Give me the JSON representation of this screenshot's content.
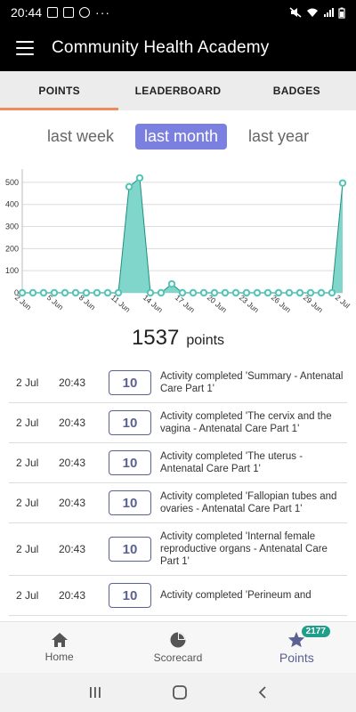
{
  "status_bar": {
    "time": "20:44",
    "more": "···"
  },
  "app_bar": {
    "title": "Community Health Academy"
  },
  "tabs": [
    {
      "label": "POINTS",
      "active": true
    },
    {
      "label": "LEADERBOARD",
      "active": false
    },
    {
      "label": "BADGES",
      "active": false
    }
  ],
  "periods": [
    {
      "label": "last week",
      "active": false
    },
    {
      "label": "last month",
      "active": true
    },
    {
      "label": "last year",
      "active": false
    }
  ],
  "chart_data": {
    "type": "area",
    "title": "",
    "xlabel": "",
    "ylabel": "",
    "x": [
      "2 Jun",
      "3 Jun",
      "4 Jun",
      "5 Jun",
      "6 Jun",
      "7 Jun",
      "8 Jun",
      "9 Jun",
      "10 Jun",
      "11 Jun",
      "12 Jun",
      "13 Jun",
      "14 Jun",
      "15 Jun",
      "16 Jun",
      "17 Jun",
      "18 Jun",
      "19 Jun",
      "20 Jun",
      "21 Jun",
      "22 Jun",
      "23 Jun",
      "24 Jun",
      "25 Jun",
      "26 Jun",
      "27 Jun",
      "28 Jun",
      "29 Jun",
      "30 Jun",
      "1 Jul",
      "2 Jul"
    ],
    "values": [
      0,
      0,
      0,
      0,
      0,
      0,
      0,
      0,
      0,
      0,
      480,
      520,
      0,
      0,
      40,
      0,
      0,
      0,
      0,
      0,
      0,
      0,
      0,
      0,
      0,
      0,
      0,
      0,
      0,
      0,
      497
    ],
    "x_tick_labels": [
      "2 Jun",
      "5 Jun",
      "8 Jun",
      "11 Jun",
      "14 Jun",
      "17 Jun",
      "20 Jun",
      "23 Jun",
      "26 Jun",
      "29 Jun",
      "2 Jul"
    ],
    "y_ticks": [
      0,
      100,
      200,
      300,
      400,
      500
    ],
    "ylim": [
      0,
      560
    ],
    "grid": true,
    "colors": {
      "fill": "#80d6cb",
      "line": "#1e8f80",
      "point": "#4fc6b6"
    }
  },
  "total": {
    "value": "1537",
    "label": "points"
  },
  "activities": [
    {
      "date": "2 Jul",
      "time": "20:43",
      "points": "10",
      "desc": "Activity completed 'Summary - Antenatal Care Part 1'"
    },
    {
      "date": "2 Jul",
      "time": "20:43",
      "points": "10",
      "desc": "Activity completed 'The cervix and the vagina - Antenatal Care Part 1'"
    },
    {
      "date": "2 Jul",
      "time": "20:43",
      "points": "10",
      "desc": "Activity completed 'The uterus - Antenatal Care Part 1'"
    },
    {
      "date": "2 Jul",
      "time": "20:43",
      "points": "10",
      "desc": "Activity completed 'Fallopian tubes and ovaries - Antenatal Care Part 1'"
    },
    {
      "date": "2 Jul",
      "time": "20:43",
      "points": "10",
      "desc": "Activity completed 'Internal female reproductive organs - Antenatal Care Part 1'"
    },
    {
      "date": "2 Jul",
      "time": "20:43",
      "points": "10",
      "desc": "Activity completed 'Perineum and"
    }
  ],
  "bottom_nav": [
    {
      "label": "Home",
      "icon": "home-icon",
      "active": false
    },
    {
      "label": "Scorecard",
      "icon": "pie-chart-icon",
      "active": false
    },
    {
      "label": "Points",
      "icon": "star-icon",
      "active": true,
      "badge": "2177"
    }
  ]
}
